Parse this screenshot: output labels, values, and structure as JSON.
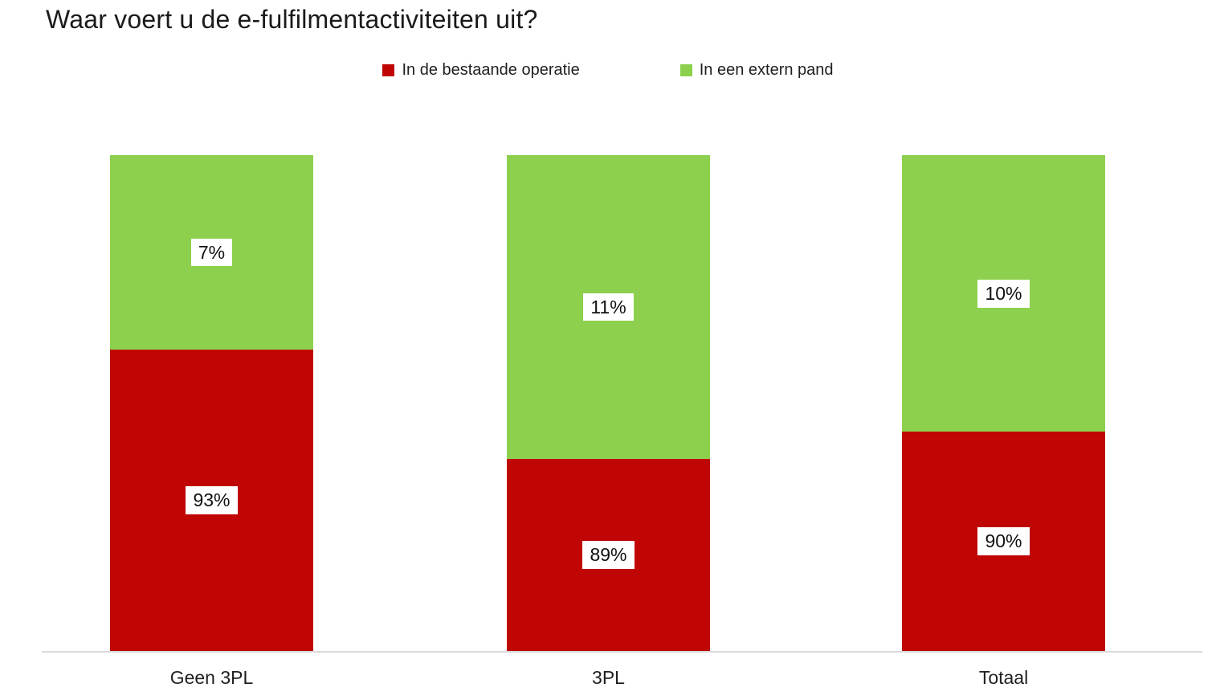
{
  "chart_data": {
    "type": "bar",
    "subtype": "stacked-column",
    "title": "Waar voert u de e-fulfilmentactiviteiten uit?",
    "categories": [
      "Geen 3PL",
      "3PL",
      "Totaal"
    ],
    "series": [
      {
        "name": "In de bestaande operatie",
        "color": "#C00505",
        "values_pct": [
          93,
          89,
          90
        ],
        "labels": [
          "93%",
          "89%",
          "90%"
        ]
      },
      {
        "name": "In een extern pand",
        "color": "#8DD04E",
        "values_pct": [
          7,
          11,
          10
        ],
        "labels": [
          "7%",
          "11%",
          "10%"
        ]
      }
    ],
    "layout": {
      "legend_position": "top-center",
      "grid": false,
      "x_axis_line": true,
      "axis_line_color": "#D9D9D9",
      "label_box_bg": "#FFFFFF",
      "background": "#FFFFFF",
      "stack_order_top_to_bottom": [
        "In een extern pand",
        "In de bestaande operatie"
      ],
      "drawn_segment_height_pct": {
        "In een extern pand": [
          39.2,
          61.3,
          55.8
        ],
        "In de bestaande operatie": [
          60.8,
          38.7,
          44.2
        ]
      }
    }
  }
}
